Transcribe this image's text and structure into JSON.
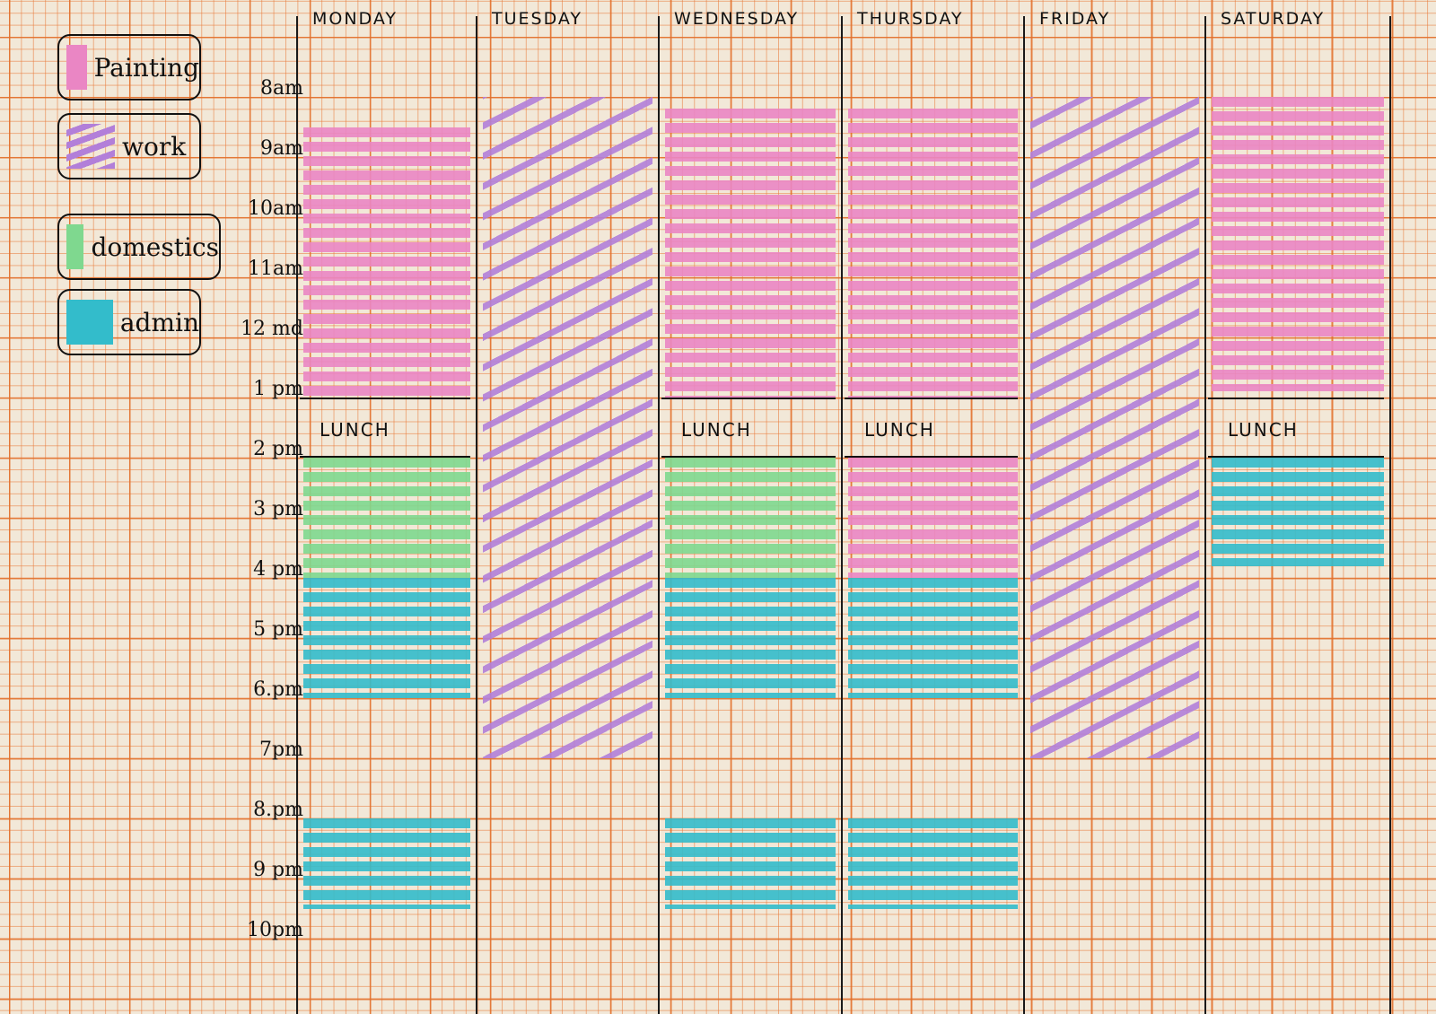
{
  "colors": {
    "painting": "#ea86c4",
    "work": "#b27fd9",
    "domestics": "#7fd88f",
    "admin": "#33bccb",
    "lunch": "transparent"
  },
  "legend": [
    {
      "key": "painting",
      "label": "Painting"
    },
    {
      "key": "work",
      "label": "work"
    },
    {
      "key": "domestics",
      "label": "domestics"
    },
    {
      "key": "admin",
      "label": "admin"
    }
  ],
  "times": [
    "8am",
    "9am",
    "10am",
    "11am",
    "12 md",
    "1 pm",
    "2 pm",
    "3 pm",
    "4 pm",
    "5 pm",
    "6.pm",
    "7pm",
    "8.pm",
    "9 pm",
    "10pm"
  ],
  "lunch_label": "LUNCH",
  "days": [
    {
      "name": "MONDAY",
      "blocks": [
        {
          "a": "painting",
          "from": 8.5,
          "to": 13
        },
        {
          "a": "lunch",
          "from": 13,
          "to": 14
        },
        {
          "a": "domestics",
          "from": 14,
          "to": 16
        },
        {
          "a": "admin",
          "from": 16,
          "to": 18
        },
        {
          "a": "admin",
          "from": 20,
          "to": 21.5
        }
      ]
    },
    {
      "name": "TUESDAY",
      "blocks": [
        {
          "a": "work",
          "from": 8,
          "to": 19
        }
      ]
    },
    {
      "name": "WEDNESDAY",
      "blocks": [
        {
          "a": "painting",
          "from": 8.2,
          "to": 13
        },
        {
          "a": "lunch",
          "from": 13,
          "to": 14
        },
        {
          "a": "domestics",
          "from": 14,
          "to": 16
        },
        {
          "a": "admin",
          "from": 16,
          "to": 18
        },
        {
          "a": "admin",
          "from": 20,
          "to": 21.5
        }
      ]
    },
    {
      "name": "THURSDAY",
      "blocks": [
        {
          "a": "painting",
          "from": 8.2,
          "to": 13
        },
        {
          "a": "lunch",
          "from": 13,
          "to": 14
        },
        {
          "a": "painting",
          "from": 14,
          "to": 16
        },
        {
          "a": "admin",
          "from": 16,
          "to": 18
        },
        {
          "a": "admin",
          "from": 20,
          "to": 21.5
        }
      ]
    },
    {
      "name": "FRIDAY",
      "blocks": [
        {
          "a": "work",
          "from": 8,
          "to": 19
        }
      ]
    },
    {
      "name": "SATURDAY",
      "blocks": [
        {
          "a": "painting",
          "from": 8,
          "to": 12.9
        },
        {
          "a": "lunch",
          "from": 13,
          "to": 14
        },
        {
          "a": "admin",
          "from": 14,
          "to": 15.8
        }
      ]
    }
  ]
}
